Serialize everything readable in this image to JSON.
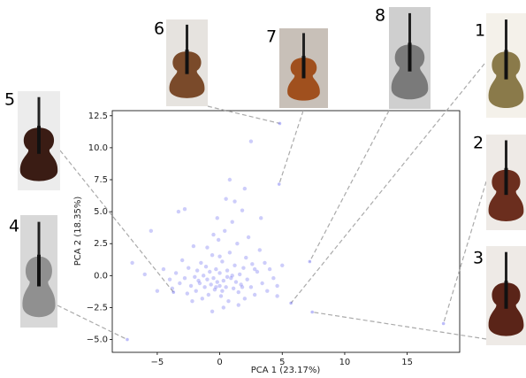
{
  "chart_data": {
    "type": "scatter",
    "xlabel": "PCA 1 (23.17%)",
    "ylabel": "PCA 2 (18.35%)",
    "xlim": [
      -8.6,
      19.2
    ],
    "ylim": [
      -6.0,
      12.9
    ],
    "xticks": [
      {
        "value": -5,
        "label": "−5"
      },
      0,
      5,
      10,
      15
    ],
    "yticks": [
      {
        "value": -5,
        "label": "−5.0"
      },
      {
        "value": -2.5,
        "label": "−2.5"
      },
      {
        "value": 0,
        "label": "0.0"
      },
      2.5,
      {
        "value": 5,
        "label": "5.0"
      },
      7.5,
      {
        "value": 10,
        "label": "10.0"
      },
      12.5
    ],
    "series": [
      {
        "color": "#5b5bf0",
        "x": [
          -4.5,
          -4,
          -3.8,
          -3.5,
          -3.2,
          -3,
          -2.8,
          -2.6,
          -2.5,
          -2.3,
          -2.1,
          -2,
          -1.9,
          -1.8,
          -1.6,
          -1.5,
          -1.4,
          -1.3,
          -1.2,
          -1.1,
          -1,
          -0.9,
          -0.8,
          -0.7,
          -0.6,
          -0.5,
          -0.4,
          -0.3,
          -0.2,
          -0.1,
          0,
          0,
          0.1,
          0.2,
          0.3,
          0.4,
          0.5,
          0.6,
          0.7,
          0.8,
          0.9,
          1,
          1.1,
          1.2,
          1.3,
          1.4,
          1.5,
          1.6,
          1.7,
          1.8,
          1.9,
          2,
          2.1,
          2.2,
          2.3,
          2.5,
          2.6,
          2.8,
          3,
          3.2,
          3.4,
          3.6,
          3.8,
          4,
          4.3,
          4.6,
          5,
          -0.2,
          0.5,
          0.8,
          -0.5,
          1.2,
          -1,
          2.5,
          0.3,
          -0.6,
          1.5,
          -2.2,
          -5,
          -6,
          -7,
          -5.5,
          -3.3,
          -2.8,
          2,
          3.3,
          4.6,
          0,
          0.6,
          -0.3,
          1,
          0.2,
          -1.7,
          1.8,
          2.8
        ],
        "y": [
          0.5,
          -0.3,
          -1,
          0.2,
          -0.6,
          1.2,
          -0.2,
          -1.4,
          0.6,
          -0.8,
          2.3,
          -0.1,
          -1.2,
          0.4,
          -0.6,
          1,
          -1.8,
          0,
          -0.9,
          0.7,
          -0.3,
          -1.5,
          0.3,
          -0.7,
          1.6,
          -0.2,
          -1.1,
          0.5,
          -0.5,
          2.8,
          -0.8,
          0.2,
          -1.6,
          1.1,
          -0.4,
          3.5,
          -0.9,
          0.4,
          -2,
          1.8,
          -0.2,
          4.2,
          -1,
          0.8,
          -0.5,
          2.5,
          -1.3,
          0.1,
          -0.7,
          5.1,
          0.6,
          -1.8,
          1.4,
          -0.3,
          3,
          -0.9,
          0.9,
          -1.5,
          0.3,
          2,
          -0.6,
          1,
          -1.2,
          0.5,
          -0.2,
          -1.6,
          0.8,
          4.5,
          6,
          7.5,
          3.2,
          5.8,
          2.2,
          10.5,
          -2.5,
          -2.8,
          -2.3,
          -2,
          -1.2,
          0.1,
          1,
          3.5,
          5,
          5.2,
          6.8,
          4.5,
          -0.8,
          1.5,
          -0.1,
          -0.9,
          0,
          -1.2,
          -0.4,
          -0.9,
          0.5
        ]
      }
    ],
    "annotations": [
      {
        "label": "1",
        "x": 5.7,
        "y": -2.15
      },
      {
        "label": "2",
        "x": 17.9,
        "y": -3.75
      },
      {
        "label": "3",
        "x": 7.4,
        "y": -2.85
      },
      {
        "label": "4",
        "x": -7.4,
        "y": -5
      },
      {
        "label": "5",
        "x": -3.7,
        "y": -1.3
      },
      {
        "label": "6",
        "x": 4.8,
        "y": 11.9
      },
      {
        "label": "7",
        "x": 4.75,
        "y": 7.15
      },
      {
        "label": "8",
        "x": 7.2,
        "y": 1.1
      }
    ]
  }
}
